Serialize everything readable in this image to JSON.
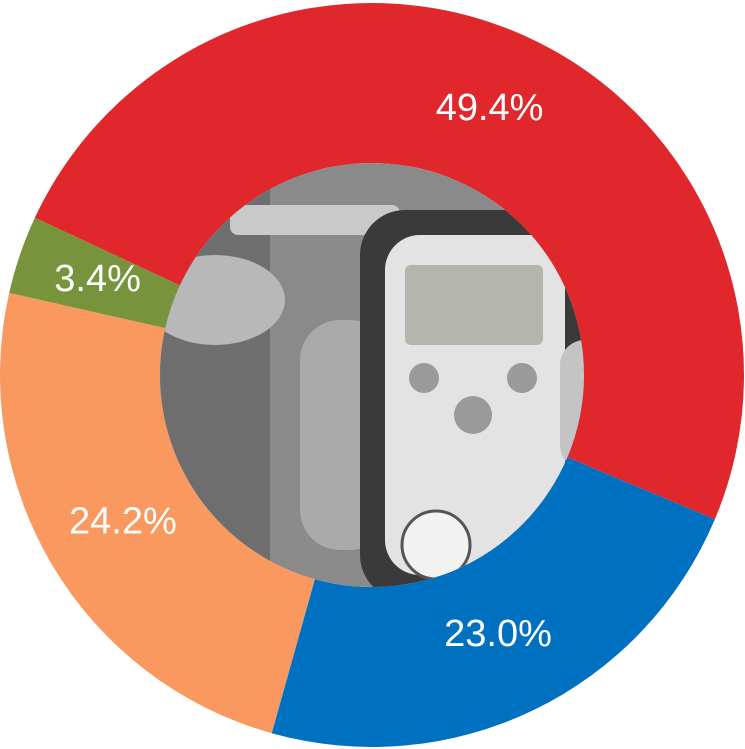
{
  "chart_data": {
    "type": "donut",
    "categories": [
      null,
      null,
      null,
      null
    ],
    "values": [
      49.4,
      23.0,
      24.2,
      3.4
    ],
    "value_labels": [
      "49.4%",
      "23.0%",
      "24.2%",
      "3.4%"
    ],
    "colors": [
      "#e0282c",
      "#0070c0",
      "#f9995f",
      "#77933c"
    ]
  }
}
